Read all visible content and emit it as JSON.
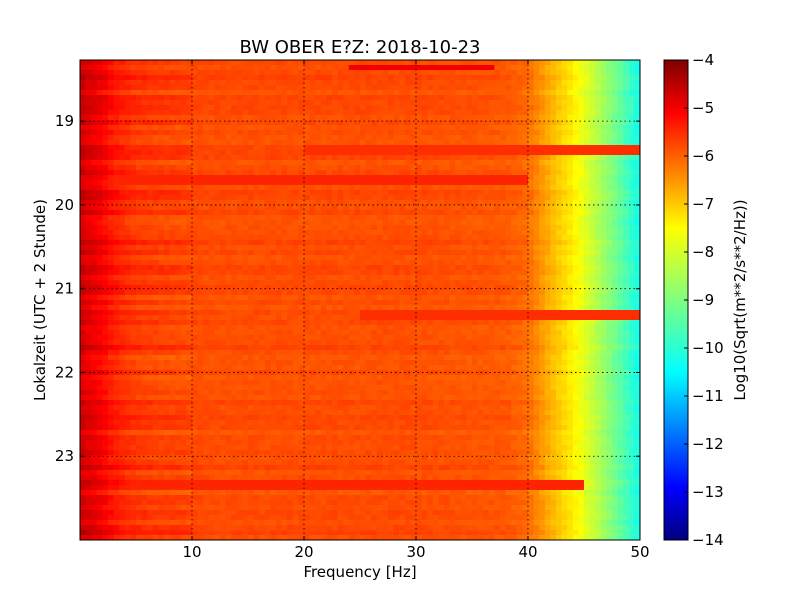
{
  "chart_data": {
    "type": "heatmap",
    "title": "BW OBER E?Z: 2018-10-23",
    "xlabel": "Frequency [Hz]",
    "ylabel": "Lokalzeit (UTC + 2 Stunde)",
    "xlim": [
      0,
      50
    ],
    "ylim": [
      18.27,
      24.0
    ],
    "x_ticks": [
      10,
      20,
      30,
      40,
      50
    ],
    "x_tick_labels": [
      "10",
      "20",
      "30",
      "40",
      "50"
    ],
    "y_ticks": [
      19,
      20,
      21,
      22,
      23
    ],
    "y_tick_labels": [
      "19",
      "20",
      "21",
      "22",
      "23"
    ],
    "grid": true,
    "colorbar": {
      "label": "Log10(Sqrt(m**2/s**2/Hz))",
      "range": [
        -14,
        -4
      ],
      "ticks": [
        -4,
        -5,
        -6,
        -7,
        -8,
        -9,
        -10,
        -11,
        -12,
        -13,
        -14
      ],
      "tick_labels": [
        "−4",
        "−5",
        "−6",
        "−7",
        "−8",
        "−9",
        "−10",
        "−11",
        "−12",
        "−13",
        "−14"
      ],
      "colormap": "jet"
    },
    "frequency_profile": {
      "frequency_hz": [
        0,
        1,
        2,
        3,
        5,
        8,
        12,
        20,
        30,
        38,
        40,
        42,
        44,
        46,
        48,
        50
      ],
      "log10_amplitude": [
        -4.8,
        -5.0,
        -5.2,
        -5.5,
        -5.8,
        -5.9,
        -6.0,
        -6.0,
        -6.0,
        -6.1,
        -6.3,
        -7.0,
        -7.6,
        -8.4,
        -9.2,
        -10.1
      ]
    },
    "highlighted_rows": [
      {
        "time_h": 18.35,
        "freq_range_hz": [
          24,
          37
        ],
        "log10_amplitude": -5.1
      },
      {
        "time_h": 19.35,
        "freq_range_hz": [
          20,
          50
        ],
        "log10_amplitude": -5.7
      },
      {
        "time_h": 19.7,
        "freq_range_hz": [
          0,
          40
        ],
        "log10_amplitude": -5.6
      },
      {
        "time_h": 21.3,
        "freq_range_hz": [
          25,
          50
        ],
        "log10_amplitude": -5.7
      },
      {
        "time_h": 23.35,
        "freq_range_hz": [
          0,
          45
        ],
        "log10_amplitude": -5.6
      }
    ]
  }
}
